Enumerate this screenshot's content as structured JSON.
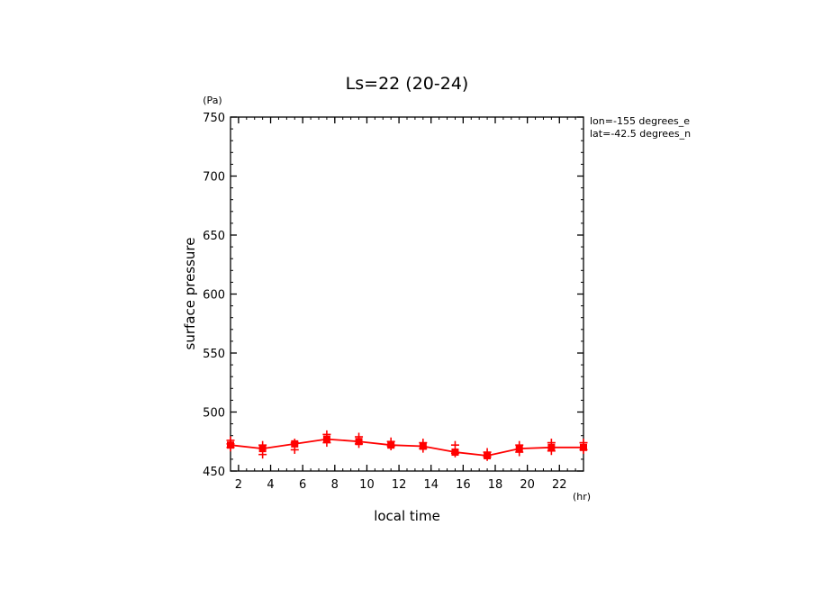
{
  "chart_data": {
    "type": "line",
    "title": "Ls=22 (20-24)",
    "xlabel": "local time",
    "ylabel": "surface pressure",
    "x_unit": "(hr)",
    "y_unit": "(Pa)",
    "annotations": [
      "lon=-155 degrees_e",
      "lat=-42.5 degrees_n"
    ],
    "xlim": [
      1.5,
      23.5
    ],
    "ylim": [
      450,
      750
    ],
    "xticks": [
      2,
      4,
      6,
      8,
      10,
      12,
      14,
      16,
      18,
      20,
      22
    ],
    "yticks": [
      450,
      500,
      550,
      600,
      650,
      700,
      750
    ],
    "grid": false,
    "colors": {
      "series": "#ff0000",
      "axes": "#000000"
    },
    "series": [
      {
        "x": [
          1.5,
          3.5,
          5.5,
          7.5,
          9.5,
          11.5,
          13.5,
          15.5,
          17.5,
          19.5,
          21.5,
          23.5
        ],
        "values": [
          472,
          469,
          473,
          477,
          475,
          472,
          471,
          466,
          463,
          469,
          470,
          470
        ]
      }
    ],
    "scatter_points": [
      {
        "x": 1.5,
        "y": 476
      },
      {
        "x": 1.5,
        "y": 470
      },
      {
        "x": 1.5,
        "y": 473
      },
      {
        "x": 3.5,
        "y": 472
      },
      {
        "x": 3.5,
        "y": 464
      },
      {
        "x": 5.5,
        "y": 474
      },
      {
        "x": 5.5,
        "y": 468
      },
      {
        "x": 7.5,
        "y": 481
      },
      {
        "x": 7.5,
        "y": 474
      },
      {
        "x": 9.5,
        "y": 479
      },
      {
        "x": 9.5,
        "y": 473
      },
      {
        "x": 11.5,
        "y": 475
      },
      {
        "x": 11.5,
        "y": 471
      },
      {
        "x": 13.5,
        "y": 474
      },
      {
        "x": 13.5,
        "y": 469
      },
      {
        "x": 15.5,
        "y": 472
      },
      {
        "x": 15.5,
        "y": 465
      },
      {
        "x": 17.5,
        "y": 466
      },
      {
        "x": 17.5,
        "y": 462
      },
      {
        "x": 19.5,
        "y": 472
      },
      {
        "x": 19.5,
        "y": 466
      },
      {
        "x": 21.5,
        "y": 474
      },
      {
        "x": 21.5,
        "y": 467
      },
      {
        "x": 23.5,
        "y": 474
      },
      {
        "x": 23.5,
        "y": 468
      }
    ]
  }
}
